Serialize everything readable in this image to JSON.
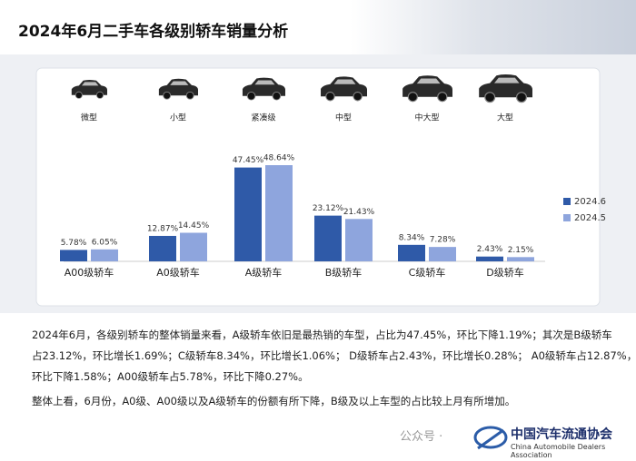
{
  "header": {
    "title": "2024年6月二手车各级别轿车销量分析"
  },
  "chart_data": {
    "type": "bar",
    "segment_labels": [
      "微型",
      "小型",
      "紧凑级",
      "中型",
      "中大型",
      "大型"
    ],
    "categories": [
      "A00级轿车",
      "A0级轿车",
      "A级轿车",
      "B级轿车",
      "C级轿车",
      "D级轿车"
    ],
    "series": [
      {
        "name": "2024.6",
        "color": "#2f5aa8",
        "values": [
          5.78,
          12.87,
          47.45,
          23.12,
          8.34,
          2.43
        ],
        "value_labels": [
          "5.78%",
          "12.87%",
          "47.45%",
          "23.12%",
          "8.34%",
          "2.43%"
        ]
      },
      {
        "name": "2024.5",
        "color": "#8ea5dd",
        "values": [
          6.05,
          14.45,
          48.64,
          21.43,
          7.28,
          2.15
        ],
        "value_labels": [
          "6.05%",
          "14.45%",
          "48.64%",
          "21.43%",
          "7.28%",
          "2.15%"
        ]
      }
    ],
    "legend_position": "right"
  },
  "text": {
    "paragraphs": [
      [
        "2024年6月，各级别轿车的整体销量来看，A级轿车依旧是最热销的车型，占比为47.45%，环比下降1.19%；其次是B级轿车",
        "占23.12%，环比增长1.69%；C级轿车8.34%，环比增长1.06%；  D级轿车占2.43%，环比增长0.28%；  A0级轿车占12.87%，",
        "环比下降1.58%；A00级轿车占5.78%，环比下降0.27%。"
      ],
      [
        "整体上看，6月份，A0级、A00级以及A级轿车的份额有所下降，B级及以上车型的占比较上月有所增加。"
      ]
    ]
  },
  "footer": {
    "watermark": "公众号 ·",
    "org": "中国汽车流通协会",
    "org_en": "China Automobile Dealers Association"
  }
}
